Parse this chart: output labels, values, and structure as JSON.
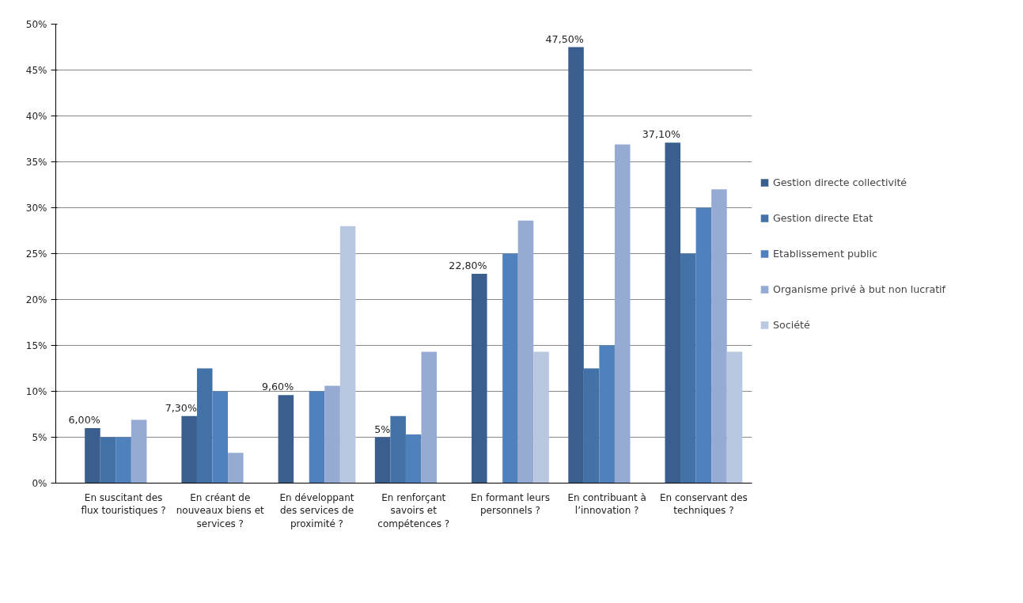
{
  "chart_data": {
    "type": "bar",
    "categories": [
      "En suscitant des\nflux touristiques ?",
      "En créant de\nnouveaux biens et\nservices ?",
      "En développant\ndes services de\nproximité ?",
      "En renforçant\nsavoirs et\ncompétences ?",
      "En formant leurs\npersonnels ?",
      "En contribuant à\nl’innovation ?",
      "En conservant des\ntechniques ?"
    ],
    "series": [
      {
        "name": "Gestion directe collectivité",
        "color": "#3a5f8f",
        "values": [
          6.0,
          7.3,
          9.6,
          5,
          22.8,
          47.5,
          37.1
        ],
        "value_labels": [
          "6,00%",
          "7,30%",
          "9,60%",
          "5%",
          "22,80%",
          "47,50%",
          "37,10%"
        ]
      },
      {
        "name": "Gestion directe Etat",
        "color": "#4272a8",
        "values": [
          5,
          12.5,
          null,
          7.3,
          null,
          12.5,
          25
        ]
      },
      {
        "name": "Etablissement public",
        "color": "#4f81bd",
        "values": [
          5,
          10,
          10,
          5.3,
          25,
          15,
          30
        ]
      },
      {
        "name": "Organisme privé à but non lucratif",
        "color": "#95abd3",
        "values": [
          6.9,
          3.3,
          10.6,
          14.3,
          28.6,
          36.9,
          32
        ]
      },
      {
        "name": "Société",
        "color": "#b9c7e1",
        "values": [
          null,
          null,
          28,
          null,
          14.3,
          null,
          14.3
        ]
      }
    ],
    "ylim": [
      0,
      50
    ],
    "yticks": [
      {
        "value": 0,
        "label": "0%"
      },
      {
        "value": 5,
        "label": "5%"
      },
      {
        "value": 10,
        "label": "10%"
      },
      {
        "value": 15,
        "label": "15%"
      },
      {
        "value": 20,
        "label": "20%"
      },
      {
        "value": 25,
        "label": "25%"
      },
      {
        "value": 30,
        "label": "30%"
      },
      {
        "value": 35,
        "label": "35%"
      },
      {
        "value": 40,
        "label": "40%"
      },
      {
        "value": 45,
        "label": "45%"
      },
      {
        "value": 50,
        "label": "50%"
      }
    ],
    "grid": "y",
    "legend": "right"
  }
}
